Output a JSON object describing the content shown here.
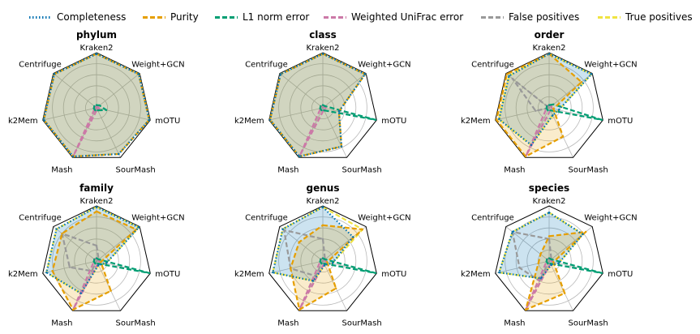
{
  "chart_data": {
    "type": "radar",
    "axes": [
      "Kraken2",
      "Weight+GCN",
      "mOTU",
      "SourMash",
      "Mash",
      "k2Mem",
      "Centrifuge"
    ],
    "rlim": [
      0,
      1
    ],
    "grid": true,
    "legend_position": "top",
    "series_styles": [
      {
        "name": "Completeness",
        "color": "#0072b2",
        "dash": "1.5,2.5",
        "fill": true
      },
      {
        "name": "Purity",
        "color": "#e69f00",
        "dash": "6,3",
        "fill": true
      },
      {
        "name": "L1 norm error",
        "color": "#009e73",
        "dash": "6,3",
        "fill": false
      },
      {
        "name": "Weighted UniFrac error",
        "color": "#cc79a7",
        "dash": "6,3",
        "fill": false
      },
      {
        "name": "False positives",
        "color": "#999999",
        "dash": "6,3",
        "fill": false
      },
      {
        "name": "True positives",
        "color": "#f0e442",
        "dash": "6,3",
        "fill": false
      }
    ],
    "panels": [
      {
        "title": "phylum",
        "series": [
          {
            "name": "Completeness",
            "values": [
              0.98,
              0.98,
              0.98,
              0.93,
              0.98,
              0.98,
              0.98
            ]
          },
          {
            "name": "Purity",
            "values": [
              0.98,
              0.98,
              0.98,
              0.93,
              0.98,
              0.98,
              0.98
            ]
          },
          {
            "name": "L1 norm error",
            "values": [
              0.05,
              0.07,
              0.18,
              0.05,
              0.05,
              0.05,
              0.05
            ]
          },
          {
            "name": "Weighted UniFrac error",
            "values": [
              0.03,
              0.03,
              0.05,
              0.03,
              0.95,
              0.03,
              0.03
            ]
          },
          {
            "name": "False positives",
            "values": [
              0.0,
              0.0,
              0.0,
              0.0,
              0.0,
              0.0,
              0.0
            ]
          },
          {
            "name": "True positives",
            "values": [
              0.98,
              0.98,
              0.98,
              0.93,
              0.98,
              0.98,
              0.98
            ]
          }
        ]
      },
      {
        "title": "class",
        "series": [
          {
            "name": "Completeness",
            "values": [
              0.98,
              0.98,
              0.3,
              0.78,
              0.98,
              0.98,
              0.98
            ]
          },
          {
            "name": "Purity",
            "values": [
              0.98,
              0.98,
              0.3,
              0.78,
              0.98,
              0.98,
              0.98
            ]
          },
          {
            "name": "L1 norm error",
            "values": [
              0.05,
              0.05,
              0.98,
              0.05,
              0.05,
              0.05,
              0.05
            ]
          },
          {
            "name": "Weighted UniFrac error",
            "values": [
              0.04,
              0.04,
              0.05,
              0.04,
              0.95,
              0.04,
              0.04
            ]
          },
          {
            "name": "False positives",
            "values": [
              0.0,
              0.0,
              0.0,
              0.0,
              0.0,
              0.0,
              0.0
            ]
          },
          {
            "name": "True positives",
            "values": [
              0.98,
              0.98,
              0.3,
              0.78,
              0.98,
              0.98,
              0.98
            ]
          }
        ]
      },
      {
        "title": "order",
        "series": [
          {
            "name": "Completeness",
            "values": [
              0.98,
              0.98,
              0.18,
              0.15,
              0.75,
              0.93,
              0.93
            ]
          },
          {
            "name": "Purity",
            "values": [
              0.98,
              0.75,
              0.08,
              0.58,
              0.98,
              0.98,
              0.98
            ]
          },
          {
            "name": "L1 norm error",
            "values": [
              0.05,
              0.1,
              0.98,
              0.05,
              0.05,
              0.05,
              0.05
            ]
          },
          {
            "name": "Weighted UniFrac error",
            "values": [
              0.05,
              0.05,
              0.05,
              0.05,
              0.95,
              0.05,
              0.05
            ]
          },
          {
            "name": "False positives",
            "values": [
              0.0,
              0.0,
              0.0,
              0.0,
              0.0,
              0.25,
              0.85
            ]
          },
          {
            "name": "True positives",
            "values": [
              0.98,
              0.98,
              0.18,
              0.15,
              0.75,
              0.93,
              0.93
            ]
          }
        ]
      },
      {
        "title": "family",
        "series": [
          {
            "name": "Completeness",
            "values": [
              0.98,
              0.98,
              0.18,
              0.08,
              0.65,
              0.93,
              0.93
            ]
          },
          {
            "name": "Purity",
            "values": [
              0.9,
              0.92,
              0.08,
              0.6,
              0.98,
              0.82,
              0.8
            ]
          },
          {
            "name": "L1 norm error",
            "values": [
              0.05,
              0.05,
              0.98,
              0.05,
              0.05,
              0.05,
              0.05
            ]
          },
          {
            "name": "Weighted UniFrac error",
            "values": [
              0.05,
              0.05,
              0.05,
              0.05,
              0.95,
              0.05,
              0.05
            ]
          },
          {
            "name": "False positives",
            "values": [
              0.28,
              0.05,
              0.0,
              0.0,
              0.2,
              0.5,
              0.8
            ]
          },
          {
            "name": "True positives",
            "values": [
              0.98,
              0.98,
              0.18,
              0.08,
              0.65,
              0.93,
              0.93
            ]
          }
        ]
      },
      {
        "title": "genus",
        "series": [
          {
            "name": "Completeness",
            "values": [
              0.98,
              0.7,
              0.18,
              0.08,
              0.4,
              0.93,
              0.93
            ]
          },
          {
            "name": "Purity",
            "values": [
              0.65,
              0.92,
              0.08,
              0.55,
              0.98,
              0.6,
              0.55
            ]
          },
          {
            "name": "L1 norm error",
            "values": [
              0.05,
              0.05,
              0.98,
              0.05,
              0.05,
              0.05,
              0.05
            ]
          },
          {
            "name": "Weighted UniFrac error",
            "values": [
              0.05,
              0.05,
              0.05,
              0.05,
              0.95,
              0.05,
              0.05
            ]
          },
          {
            "name": "False positives",
            "values": [
              0.4,
              0.05,
              0.0,
              0.0,
              0.3,
              0.6,
              0.9
            ]
          },
          {
            "name": "True positives",
            "values": [
              0.98,
              0.92,
              0.18,
              0.08,
              0.4,
              0.93,
              0.93
            ]
          }
        ]
      },
      {
        "title": "species",
        "series": [
          {
            "name": "Completeness",
            "values": [
              0.88,
              0.78,
              0.18,
              0.08,
              0.35,
              0.93,
              0.85
            ]
          },
          {
            "name": "Purity",
            "values": [
              0.45,
              0.85,
              0.08,
              0.65,
              0.98,
              0.2,
              0.2
            ]
          },
          {
            "name": "L1 norm error",
            "values": [
              0.05,
              0.05,
              0.98,
              0.05,
              0.05,
              0.05,
              0.05
            ]
          },
          {
            "name": "Weighted UniFrac error",
            "values": [
              0.05,
              0.05,
              0.05,
              0.05,
              0.95,
              0.05,
              0.05
            ]
          },
          {
            "name": "False positives",
            "values": [
              0.4,
              0.05,
              0.0,
              0.0,
              0.4,
              0.55,
              0.85
            ]
          },
          {
            "name": "True positives",
            "values": [
              0.88,
              0.78,
              0.18,
              0.08,
              0.35,
              0.93,
              0.85
            ]
          }
        ]
      }
    ]
  }
}
